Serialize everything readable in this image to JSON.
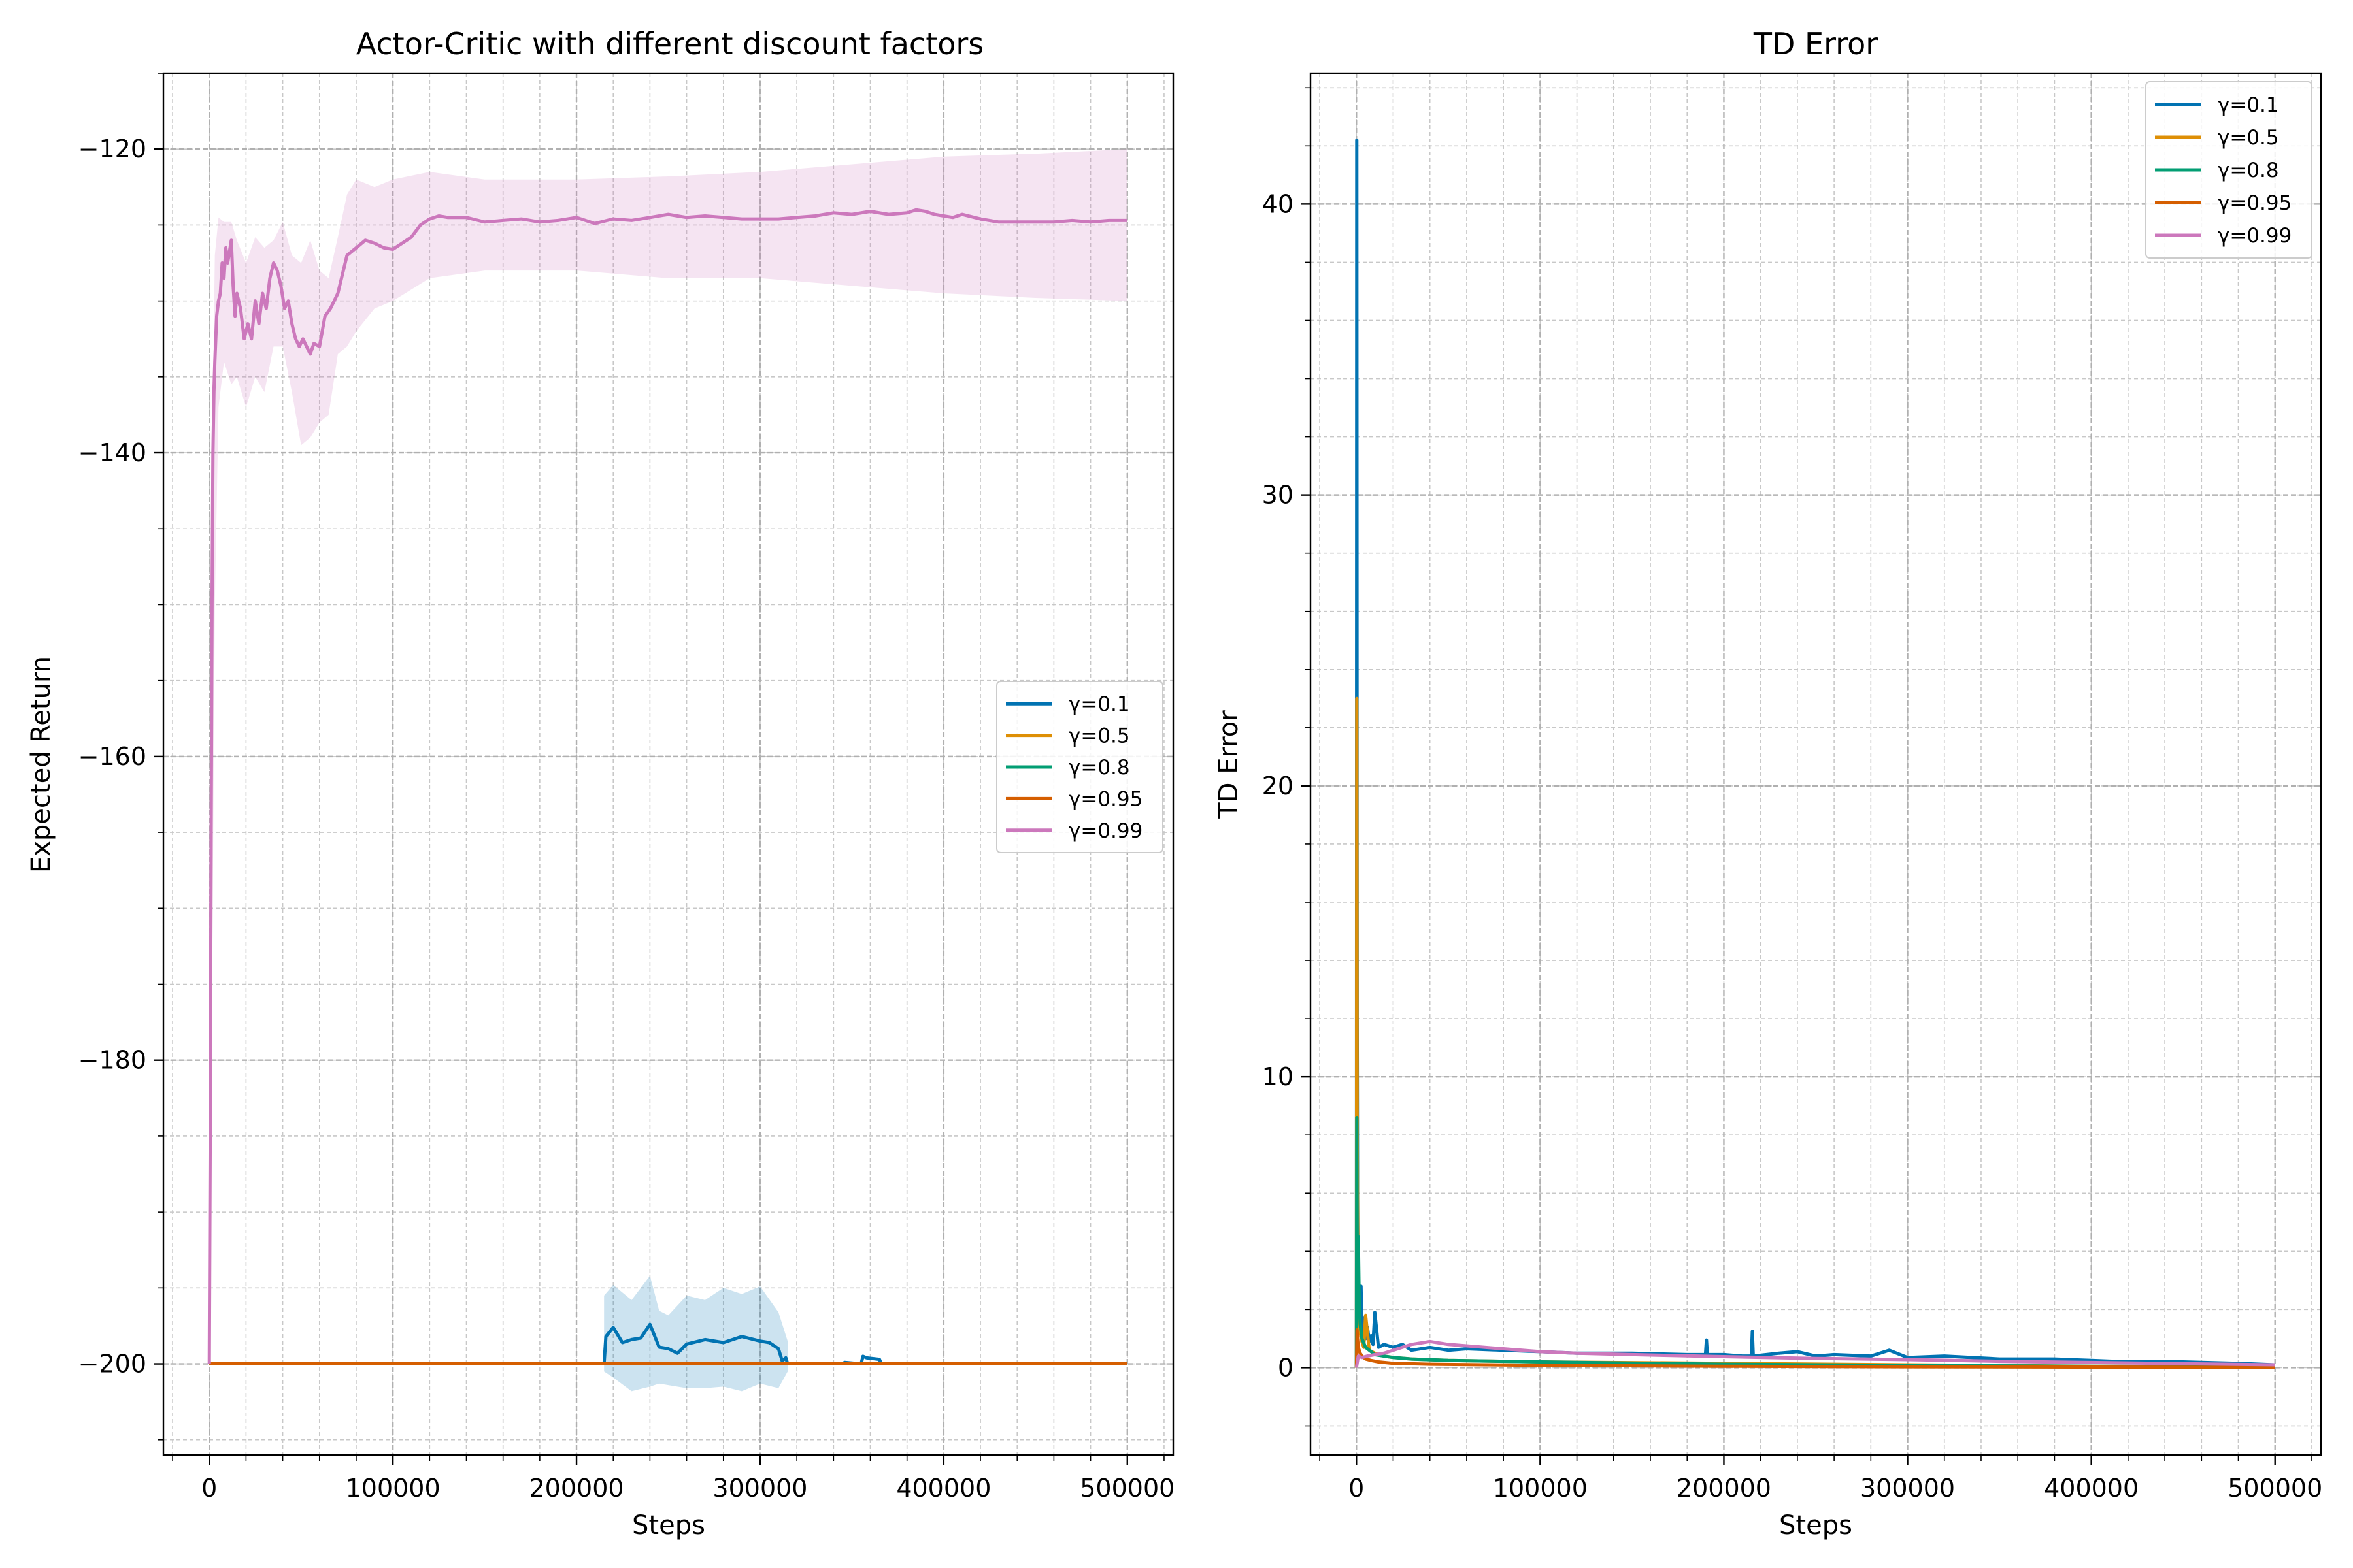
{
  "colors": {
    "g01": "#0173b2",
    "g05": "#de8f05",
    "g08": "#029e73",
    "g095": "#d55e00",
    "g099": "#cc78bc"
  },
  "chart_data": [
    {
      "type": "line",
      "title": "Actor-Critic with different discount factors",
      "xlabel": "Steps",
      "ylabel": "Expected Return",
      "xlim": [
        -25000,
        525000
      ],
      "ylim": [
        -206,
        -115
      ],
      "xticks": [
        0,
        100000,
        200000,
        300000,
        400000,
        500000
      ],
      "xtick_labels": [
        "0",
        "100000",
        "200000",
        "300000",
        "400000",
        "500000"
      ],
      "yticks": [
        -200,
        -180,
        -160,
        -140,
        -120
      ],
      "ytick_labels": [
        "−200",
        "−180",
        "−160",
        "−140",
        "−120"
      ],
      "grid": true,
      "legend_position": "center-right",
      "series": [
        {
          "name": "γ=0.1",
          "color": "#0173b2",
          "x": [
            0,
            215000,
            216000,
            220000,
            225000,
            230000,
            235000,
            240000,
            245000,
            250000,
            255000,
            260000,
            270000,
            280000,
            290000,
            300000,
            305000,
            310000,
            312000,
            314000,
            315000,
            345000,
            346000,
            355000,
            356000,
            358000,
            365000,
            366000,
            500000
          ],
          "y": [
            -200,
            -200,
            -198.2,
            -197.6,
            -198.6,
            -198.4,
            -198.3,
            -197.4,
            -198.9,
            -199.0,
            -199.3,
            -198.7,
            -198.4,
            -198.6,
            -198.2,
            -198.5,
            -198.6,
            -199.0,
            -199.8,
            -199.6,
            -200,
            -200,
            -199.9,
            -200,
            -199.5,
            -199.6,
            -199.7,
            -200,
            -200
          ],
          "band_x": [
            215000,
            220000,
            230000,
            240000,
            245000,
            250000,
            260000,
            270000,
            280000,
            290000,
            300000,
            310000,
            315000
          ],
          "band_upper": [
            -195.5,
            -194.8,
            -195.8,
            -194.2,
            -196.5,
            -196.8,
            -195.5,
            -195.8,
            -195.0,
            -195.4,
            -194.9,
            -196.6,
            -198.5
          ],
          "band_lower": [
            -200.5,
            -200.9,
            -201.8,
            -201.5,
            -201.3,
            -201.4,
            -201.6,
            -201.6,
            -201.5,
            -201.8,
            -201.3,
            -201.6,
            -200.5
          ]
        },
        {
          "name": "γ=0.5",
          "color": "#de8f05",
          "x": [
            0,
            500000
          ],
          "y": [
            -200,
            -200
          ]
        },
        {
          "name": "γ=0.8",
          "color": "#029e73",
          "x": [
            0,
            500000
          ],
          "y": [
            -200,
            -200
          ]
        },
        {
          "name": "γ=0.95",
          "color": "#d55e00",
          "x": [
            0,
            500000
          ],
          "y": [
            -200,
            -200
          ]
        },
        {
          "name": "γ=0.99",
          "color": "#cc78bc",
          "x": [
            0,
            500,
            1000,
            1500,
            2000,
            2500,
            3000,
            4000,
            5000,
            6000,
            7000,
            8000,
            9000,
            10000,
            12000,
            13000,
            14000,
            15000,
            17000,
            19000,
            21000,
            23000,
            25000,
            27000,
            29000,
            31000,
            33000,
            35000,
            37000,
            39000,
            41000,
            43000,
            45000,
            47000,
            49000,
            51000,
            53000,
            55000,
            57000,
            60000,
            63000,
            66000,
            70000,
            75000,
            80000,
            85000,
            90000,
            95000,
            100000,
            105000,
            110000,
            115000,
            120000,
            125000,
            130000,
            140000,
            150000,
            160000,
            170000,
            180000,
            190000,
            200000,
            210000,
            220000,
            230000,
            240000,
            250000,
            260000,
            270000,
            280000,
            290000,
            300000,
            310000,
            320000,
            330000,
            340000,
            350000,
            360000,
            370000,
            380000,
            385000,
            390000,
            395000,
            400000,
            405000,
            410000,
            420000,
            430000,
            440000,
            450000,
            460000,
            470000,
            480000,
            490000,
            500000
          ],
          "y": [
            -200,
            -185,
            -165,
            -150,
            -140,
            -136,
            -134,
            -131,
            -130,
            -129.5,
            -127.5,
            -128.5,
            -126.5,
            -127.5,
            -126.0,
            -129.0,
            -131.0,
            -129.5,
            -130.5,
            -132.5,
            -131.5,
            -132.5,
            -130.0,
            -131.5,
            -129.5,
            -130.5,
            -128.5,
            -127.5,
            -128.0,
            -129.0,
            -130.5,
            -130.0,
            -131.5,
            -132.5,
            -133.0,
            -132.5,
            -133.0,
            -133.5,
            -132.8,
            -133.0,
            -131.0,
            -130.5,
            -129.5,
            -127.0,
            -126.5,
            -126.0,
            -126.2,
            -126.5,
            -126.6,
            -126.2,
            -125.8,
            -125.0,
            -124.6,
            -124.4,
            -124.5,
            -124.5,
            -124.8,
            -124.7,
            -124.6,
            -124.8,
            -124.7,
            -124.5,
            -124.9,
            -124.6,
            -124.7,
            -124.5,
            -124.3,
            -124.5,
            -124.4,
            -124.5,
            -124.6,
            -124.6,
            -124.6,
            -124.5,
            -124.4,
            -124.2,
            -124.3,
            -124.1,
            -124.3,
            -124.2,
            -124.0,
            -124.1,
            -124.3,
            -124.4,
            -124.5,
            -124.3,
            -124.6,
            -124.8,
            -124.8,
            -124.8,
            -124.8,
            -124.7,
            -124.8,
            -124.7,
            -124.7
          ],
          "band_x": [
            1000,
            3000,
            5000,
            8000,
            12000,
            15000,
            20000,
            25000,
            30000,
            35000,
            40000,
            45000,
            50000,
            55000,
            60000,
            65000,
            70000,
            75000,
            80000,
            90000,
            100000,
            120000,
            150000,
            200000,
            250000,
            300000,
            350000,
            400000,
            450000,
            500000
          ],
          "band_upper": [
            -145,
            -127,
            -124.5,
            -124.8,
            -124.8,
            -126.0,
            -127.5,
            -125.8,
            -126.5,
            -126.0,
            -124.8,
            -127.0,
            -127.5,
            -126.0,
            -128.0,
            -128.5,
            -125.8,
            -123.0,
            -122.0,
            -122.5,
            -122.0,
            -121.5,
            -122.0,
            -122.0,
            -121.8,
            -121.5,
            -121.0,
            -120.5,
            -120.3,
            -120.0
          ],
          "band_lower": [
            -185,
            -150,
            -137,
            -134,
            -135.5,
            -135,
            -137,
            -135,
            -136,
            -133,
            -133,
            -136,
            -139.5,
            -139.0,
            -138.0,
            -137.5,
            -133.5,
            -133.0,
            -132.0,
            -130.5,
            -130.0,
            -128.5,
            -128.0,
            -128.0,
            -128.5,
            -128.5,
            -129.0,
            -129.5,
            -129.8,
            -130.0
          ]
        }
      ]
    },
    {
      "type": "line",
      "title": "TD Error",
      "xlabel": "Steps",
      "ylabel": "TD Error",
      "xlim": [
        -25000,
        525000
      ],
      "ylim": [
        -3,
        44.5
      ],
      "xticks": [
        0,
        100000,
        200000,
        300000,
        400000,
        500000
      ],
      "xtick_labels": [
        "0",
        "100000",
        "200000",
        "300000",
        "400000",
        "500000"
      ],
      "yticks": [
        0,
        10,
        20,
        30,
        40
      ],
      "ytick_labels": [
        "0",
        "10",
        "20",
        "30",
        "40"
      ],
      "grid": true,
      "legend_position": "top-right",
      "series": [
        {
          "name": "γ=0.1",
          "color": "#0173b2",
          "x": [
            0,
            200,
            400,
            600,
            800,
            1000,
            1500,
            2000,
            2500,
            3000,
            4000,
            5000,
            6000,
            7000,
            8000,
            9000,
            10000,
            12000,
            15000,
            20000,
            25000,
            30000,
            40000,
            50000,
            60000,
            80000,
            100000,
            120000,
            150000,
            180000,
            190000,
            190500,
            191000,
            200000,
            210000,
            215000,
            215500,
            216000,
            230000,
            240000,
            250000,
            260000,
            280000,
            290000,
            300000,
            320000,
            350000,
            380000,
            400000,
            420000,
            450000,
            480000,
            500000
          ],
          "y": [
            0,
            42.2,
            12,
            6,
            4,
            3.1,
            2.0,
            1.6,
            2.8,
            1.2,
            1.7,
            1.0,
            1.4,
            0.9,
            1.1,
            0.8,
            1.9,
            0.7,
            0.8,
            0.7,
            0.8,
            0.6,
            0.7,
            0.6,
            0.65,
            0.6,
            0.55,
            0.5,
            0.5,
            0.45,
            0.45,
            0.95,
            0.45,
            0.45,
            0.4,
            0.4,
            1.25,
            0.4,
            0.5,
            0.55,
            0.4,
            0.45,
            0.4,
            0.6,
            0.35,
            0.4,
            0.3,
            0.3,
            0.25,
            0.2,
            0.2,
            0.15,
            0.1
          ]
        },
        {
          "name": "γ=0.5",
          "color": "#de8f05",
          "x": [
            0,
            200,
            400,
            700,
            1000,
            1500,
            2000,
            3000,
            4000,
            5000,
            7000,
            10000,
            15000,
            20000,
            30000,
            50000,
            100000,
            200000,
            300000,
            400000,
            500000
          ],
          "y": [
            0,
            23.0,
            8,
            4,
            2.8,
            1.8,
            1.2,
            0.9,
            0.7,
            1.8,
            0.6,
            0.5,
            0.4,
            0.35,
            0.3,
            0.25,
            0.2,
            0.15,
            0.1,
            0.05,
            0.03
          ]
        },
        {
          "name": "γ=0.8",
          "color": "#029e73",
          "x": [
            0,
            200,
            400,
            700,
            1000,
            1500,
            2000,
            3000,
            5000,
            8000,
            10000,
            15000,
            20000,
            30000,
            50000,
            100000,
            200000,
            300000,
            400000,
            500000
          ],
          "y": [
            0,
            8.6,
            4.5,
            3.2,
            4.5,
            2.2,
            1.5,
            1.0,
            0.7,
            0.55,
            0.45,
            0.4,
            0.35,
            0.3,
            0.25,
            0.2,
            0.12,
            0.08,
            0.05,
            0.03
          ]
        },
        {
          "name": "γ=0.95",
          "color": "#d55e00",
          "x": [
            0,
            300,
            600,
            1000,
            2000,
            3000,
            5000,
            8000,
            12000,
            20000,
            40000,
            100000,
            200000,
            300000,
            400000,
            500000
          ],
          "y": [
            0,
            1.3,
            1.0,
            0.7,
            0.5,
            0.4,
            0.3,
            0.25,
            0.2,
            0.15,
            0.12,
            0.08,
            0.05,
            0.03,
            0.02,
            0.01
          ]
        },
        {
          "name": "γ=0.99",
          "color": "#cc78bc",
          "x": [
            0,
            1000,
            3000,
            6000,
            10000,
            15000,
            20000,
            25000,
            30000,
            35000,
            40000,
            50000,
            60000,
            80000,
            100000,
            120000,
            150000,
            200000,
            250000,
            300000,
            350000,
            400000,
            450000,
            500000
          ],
          "y": [
            0,
            0.4,
            0.35,
            0.4,
            0.45,
            0.5,
            0.6,
            0.7,
            0.8,
            0.85,
            0.9,
            0.8,
            0.75,
            0.65,
            0.55,
            0.5,
            0.45,
            0.38,
            0.32,
            0.28,
            0.22,
            0.18,
            0.14,
            0.1
          ]
        }
      ]
    }
  ]
}
